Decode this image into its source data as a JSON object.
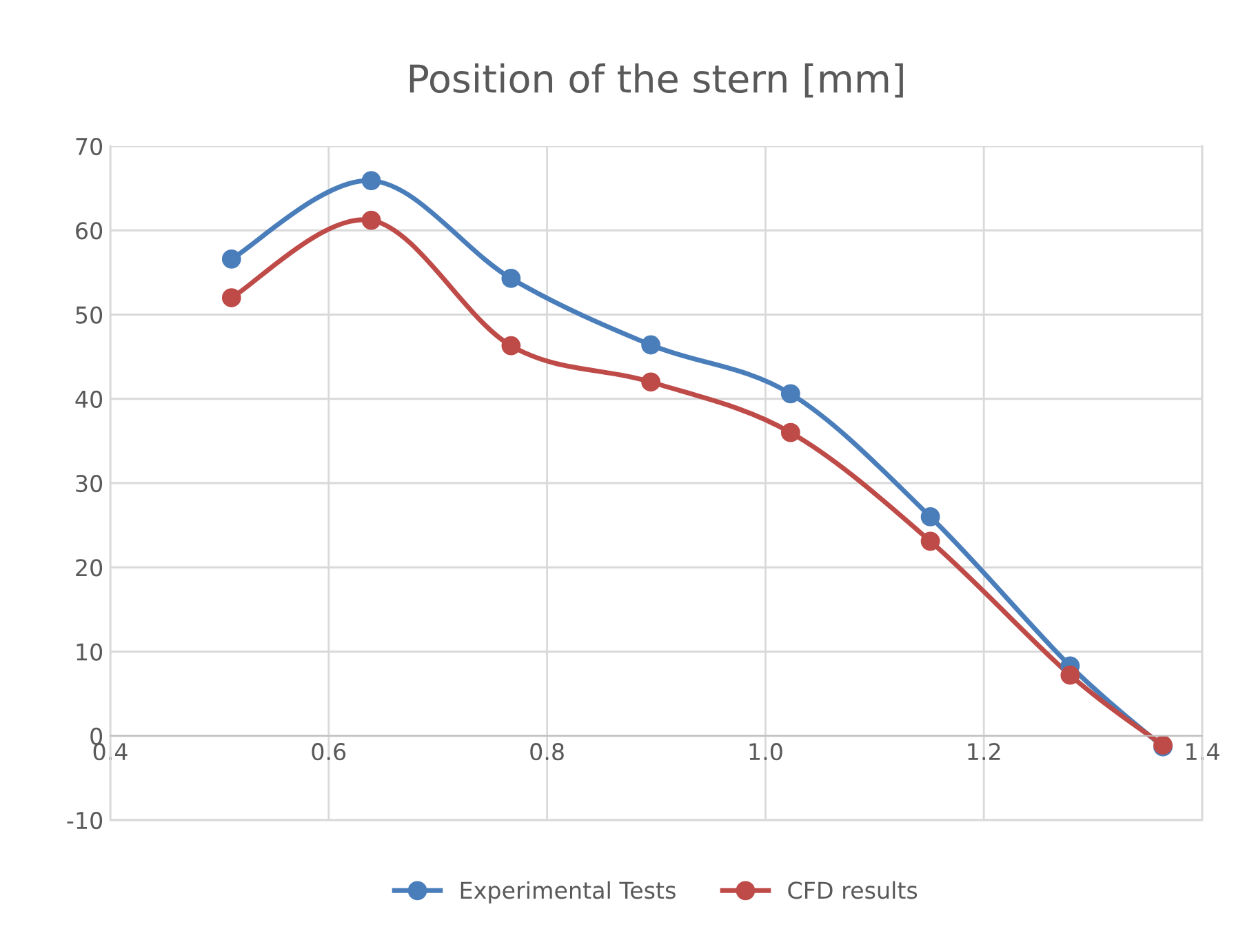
{
  "chart_data": {
    "type": "line",
    "title": "Position of the stern [mm]",
    "x": [
      0.511,
      0.639,
      0.767,
      0.895,
      1.023,
      1.151,
      1.279,
      1.364
    ],
    "series": [
      {
        "name": "Experimental Tests",
        "color": "#4a7ebb",
        "values": [
          56.6,
          65.9,
          54.3,
          46.4,
          40.6,
          26.0,
          8.3,
          -1.3
        ]
      },
      {
        "name": "CFD results",
        "color": "#be4b48",
        "values": [
          52.0,
          61.2,
          46.3,
          42.0,
          36.0,
          23.1,
          7.2,
          -1.1
        ]
      }
    ],
    "xlim": [
      0.4,
      1.4
    ],
    "xticks": [
      0.4,
      0.6,
      0.8,
      {
        "value": 1.0,
        "label": "1.0"
      },
      1.2,
      1.4
    ],
    "ylim": [
      -10,
      70
    ],
    "yticks": [
      -10,
      0,
      10,
      20,
      30,
      40,
      50,
      60,
      70
    ],
    "grid": true,
    "legend": "bottom",
    "marker": "circle",
    "line_style": "solid"
  }
}
